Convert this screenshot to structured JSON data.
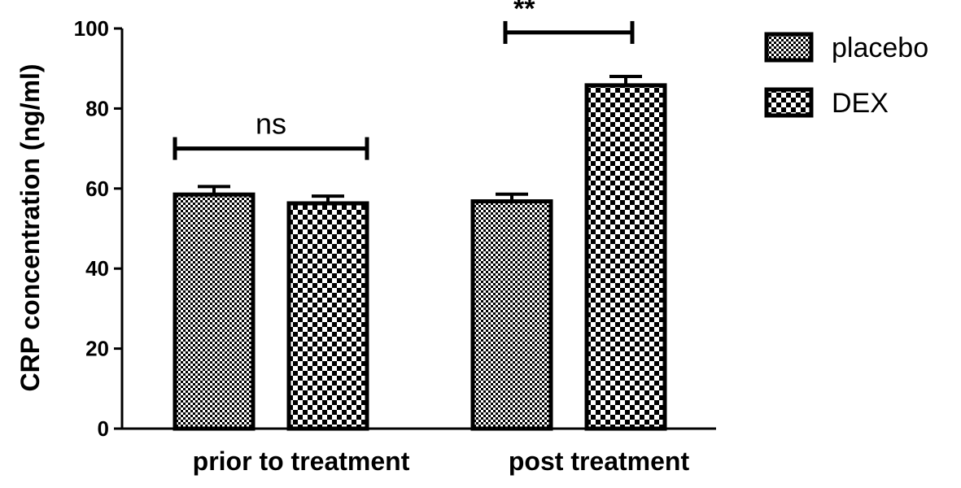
{
  "chart_data": {
    "type": "bar",
    "title": "",
    "xlabel": "",
    "ylabel": "CRP concentration (ng/ml)",
    "ylim": [
      0,
      100
    ],
    "yticks": [
      0,
      20,
      40,
      60,
      80,
      100
    ],
    "categories": [
      "prior to treatment",
      "post treatment"
    ],
    "series": [
      {
        "name": "placebo",
        "values": [
          58.5,
          56.8
        ],
        "errors": [
          2.0,
          1.8
        ],
        "pattern": "fine-checker"
      },
      {
        "name": "DEX",
        "values": [
          56.3,
          85.8
        ],
        "errors": [
          1.8,
          2.2
        ],
        "pattern": "coarse-checker"
      }
    ],
    "annotations": [
      {
        "category": "prior to treatment",
        "text": "ns",
        "level": 70
      },
      {
        "category": "post treatment",
        "text": "**",
        "level": 99
      }
    ],
    "legend": {
      "position": "top-right",
      "entries": [
        "placebo",
        "DEX"
      ]
    },
    "grid": false,
    "colors": {
      "bar_fill": "#ffffff",
      "pattern": "#000000",
      "stroke": "#000000"
    }
  }
}
